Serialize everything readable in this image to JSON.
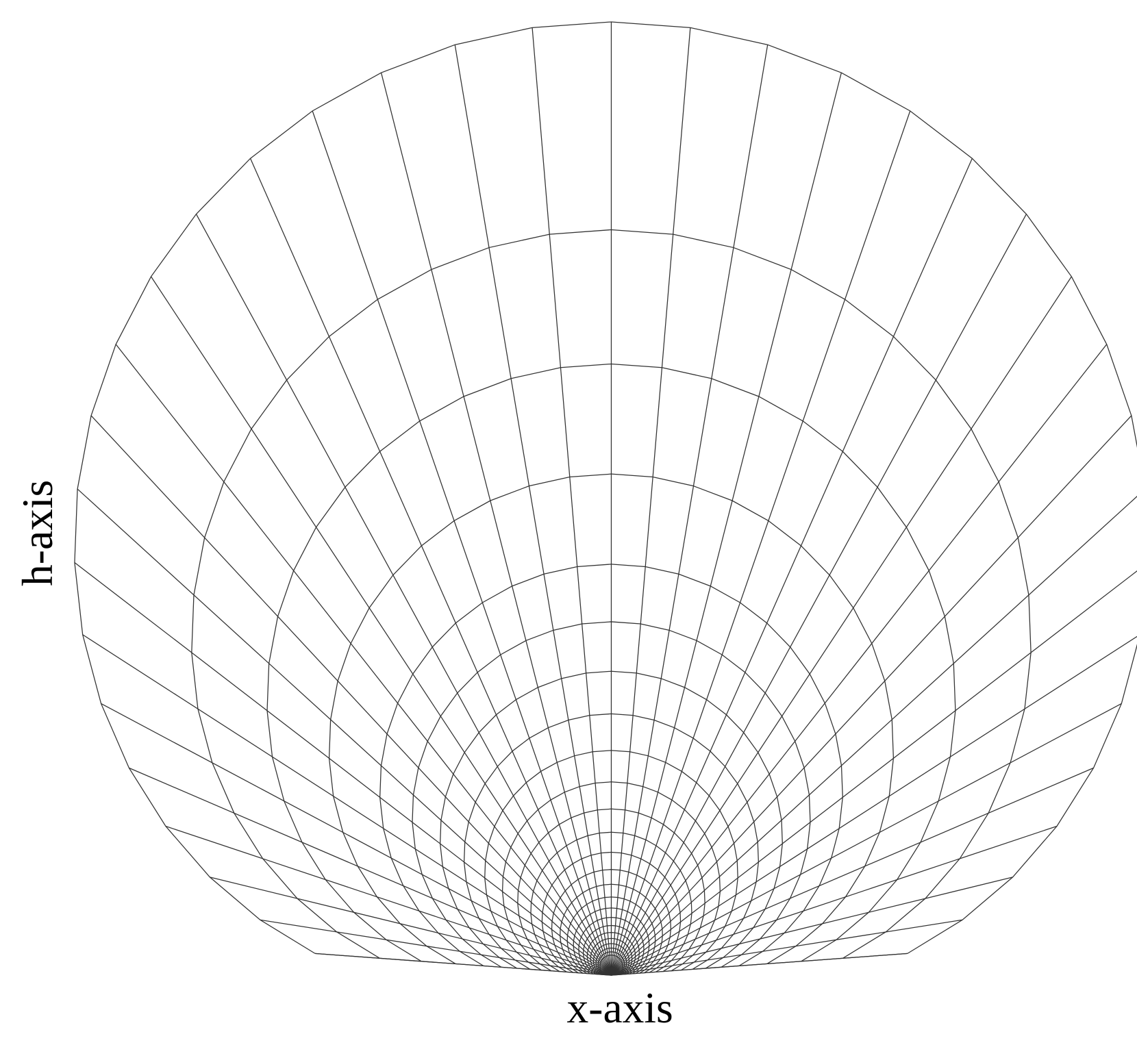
{
  "labels": {
    "h_axis": "h-axis",
    "x_axis": "x-axis"
  }
}
